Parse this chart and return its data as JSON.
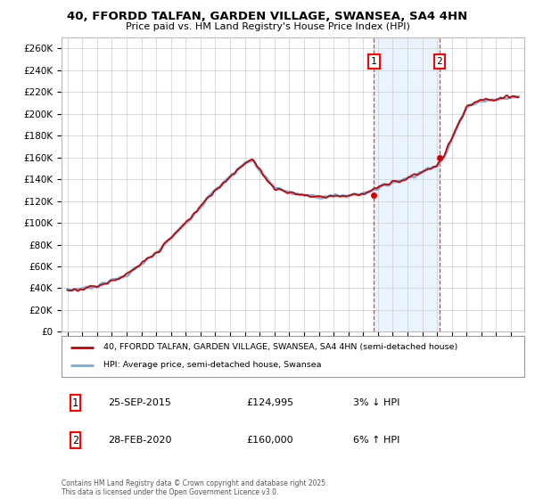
{
  "title_line1": "40, FFORDD TALFAN, GARDEN VILLAGE, SWANSEA, SA4 4HN",
  "title_line2": "Price paid vs. HM Land Registry's House Price Index (HPI)",
  "ylim": [
    0,
    270000
  ],
  "yticks": [
    0,
    20000,
    40000,
    60000,
    80000,
    100000,
    120000,
    140000,
    160000,
    180000,
    200000,
    220000,
    240000,
    260000
  ],
  "ytick_labels": [
    "£0",
    "£20K",
    "£40K",
    "£60K",
    "£80K",
    "£100K",
    "£120K",
    "£140K",
    "£160K",
    "£180K",
    "£200K",
    "£220K",
    "£240K",
    "£260K"
  ],
  "sale1_date": "25-SEP-2015",
  "sale1_price": 124995,
  "sale1_pct": "3% ↓ HPI",
  "sale2_date": "28-FEB-2020",
  "sale2_price": 160000,
  "sale2_pct": "6% ↑ HPI",
  "sale1_x": 2015.73,
  "sale2_x": 2020.17,
  "legend_label1": "40, FFORDD TALFAN, GARDEN VILLAGE, SWANSEA, SA4 4HN (semi-detached house)",
  "legend_label2": "HPI: Average price, semi-detached house, Swansea",
  "footer": "Contains HM Land Registry data © Crown copyright and database right 2025.\nThis data is licensed under the Open Government Licence v3.0.",
  "property_color": "#cc0000",
  "hpi_color": "#7aadd4",
  "background_color": "#ffffff",
  "grid_color": "#cccccc",
  "shade_color": "#ddeeff",
  "xlim_left": 1994.6,
  "xlim_right": 2025.9
}
